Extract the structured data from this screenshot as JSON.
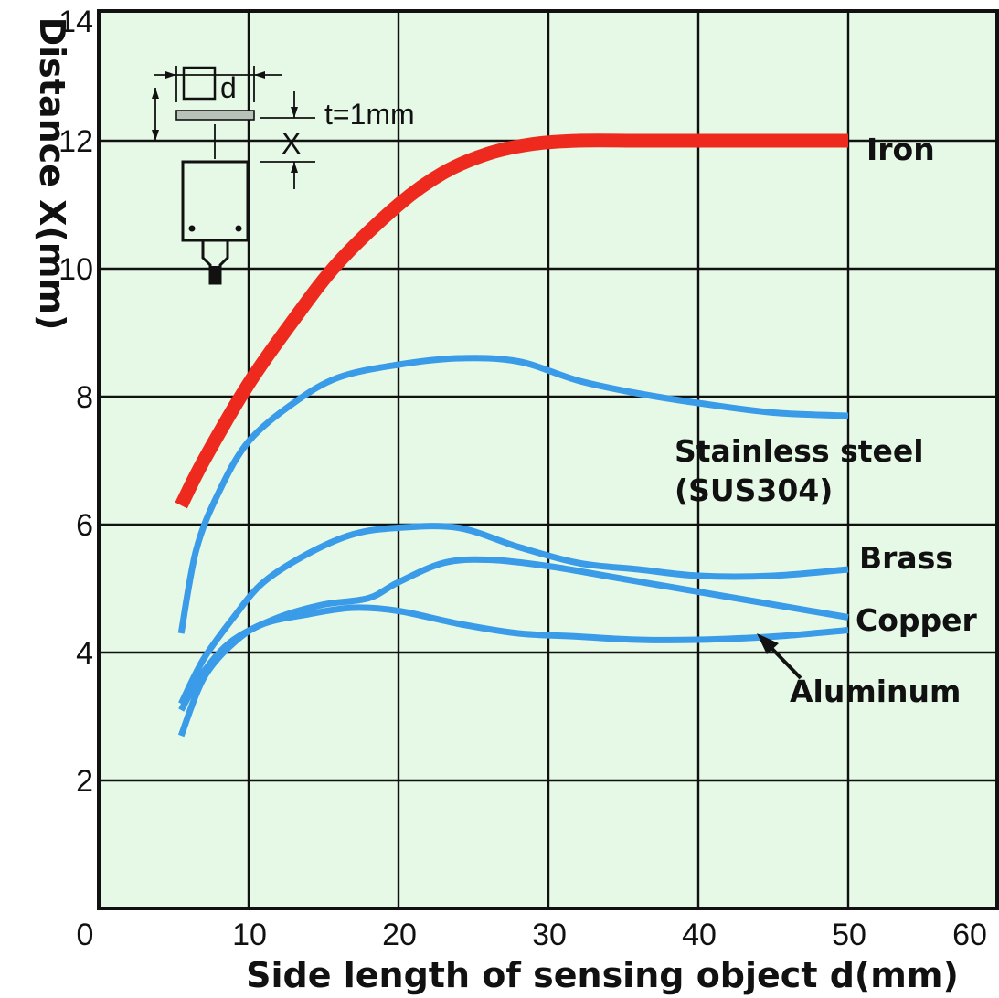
{
  "chart_data": {
    "type": "line",
    "xlabel": "Side length of sensing object d(mm)",
    "ylabel": "Distance X(mm)",
    "xlim": [
      0,
      60
    ],
    "ylim": [
      0,
      14
    ],
    "x_ticks": [
      "0",
      "10",
      "20",
      "30",
      "40",
      "50",
      "60"
    ],
    "y_ticks": [
      "2",
      "4",
      "6",
      "8",
      "10",
      "12",
      "14"
    ],
    "grid": true,
    "colors": {
      "plot_background": "#e6f9e6",
      "iron": "#ee2a1e",
      "others": "#3a9be8",
      "grid": "#111111"
    },
    "series": [
      {
        "name": "Iron",
        "color": "#ee2a1e",
        "x": [
          5.5,
          7,
          10,
          13,
          16,
          20,
          23,
          26,
          29,
          32,
          36,
          40,
          45,
          50
        ],
        "y": [
          6.3,
          7.0,
          8.2,
          9.2,
          10.1,
          11.0,
          11.5,
          11.8,
          11.95,
          12.0,
          12.0,
          12.0,
          12.0,
          12.0
        ]
      },
      {
        "name": "Stainless steel (SUS304)",
        "color": "#3a9be8",
        "x": [
          5.5,
          6.5,
          8,
          10,
          13,
          16,
          20,
          24,
          28,
          32,
          36,
          40,
          45,
          50
        ],
        "y": [
          4.3,
          5.6,
          6.5,
          7.3,
          7.9,
          8.3,
          8.5,
          8.6,
          8.55,
          8.25,
          8.05,
          7.9,
          7.75,
          7.7
        ]
      },
      {
        "name": "Brass",
        "color": "#3a9be8",
        "x": [
          5.5,
          7,
          9,
          11,
          14,
          17,
          20,
          24,
          28,
          32,
          36,
          40,
          45,
          50
        ],
        "y": [
          3.2,
          3.9,
          4.55,
          5.1,
          5.55,
          5.85,
          5.95,
          5.95,
          5.65,
          5.4,
          5.3,
          5.2,
          5.2,
          5.3
        ]
      },
      {
        "name": "Copper",
        "color": "#3a9be8",
        "x": [
          5.5,
          7,
          9,
          12,
          15,
          18,
          20,
          23,
          26,
          30,
          35,
          40,
          45,
          50
        ],
        "y": [
          3.1,
          3.7,
          4.2,
          4.55,
          4.75,
          4.85,
          5.1,
          5.4,
          5.45,
          5.35,
          5.15,
          4.95,
          4.75,
          4.55
        ]
      },
      {
        "name": "Aluminum",
        "color": "#3a9be8",
        "x": [
          5.5,
          7,
          9,
          11,
          14,
          17,
          20,
          24,
          28,
          32,
          36,
          40,
          45,
          50
        ],
        "y": [
          2.7,
          3.6,
          4.15,
          4.45,
          4.6,
          4.7,
          4.65,
          4.45,
          4.3,
          4.25,
          4.2,
          4.2,
          4.25,
          4.35
        ]
      }
    ],
    "labels": {
      "iron": "Iron",
      "stainless_line1": "Stainless steel",
      "stainless_line2": "(SUS304)",
      "brass": "Brass",
      "copper": "Copper",
      "aluminum": "Aluminum"
    },
    "inset": {
      "d_label": "d",
      "t_label": "t=1mm",
      "x_label": "X"
    }
  }
}
